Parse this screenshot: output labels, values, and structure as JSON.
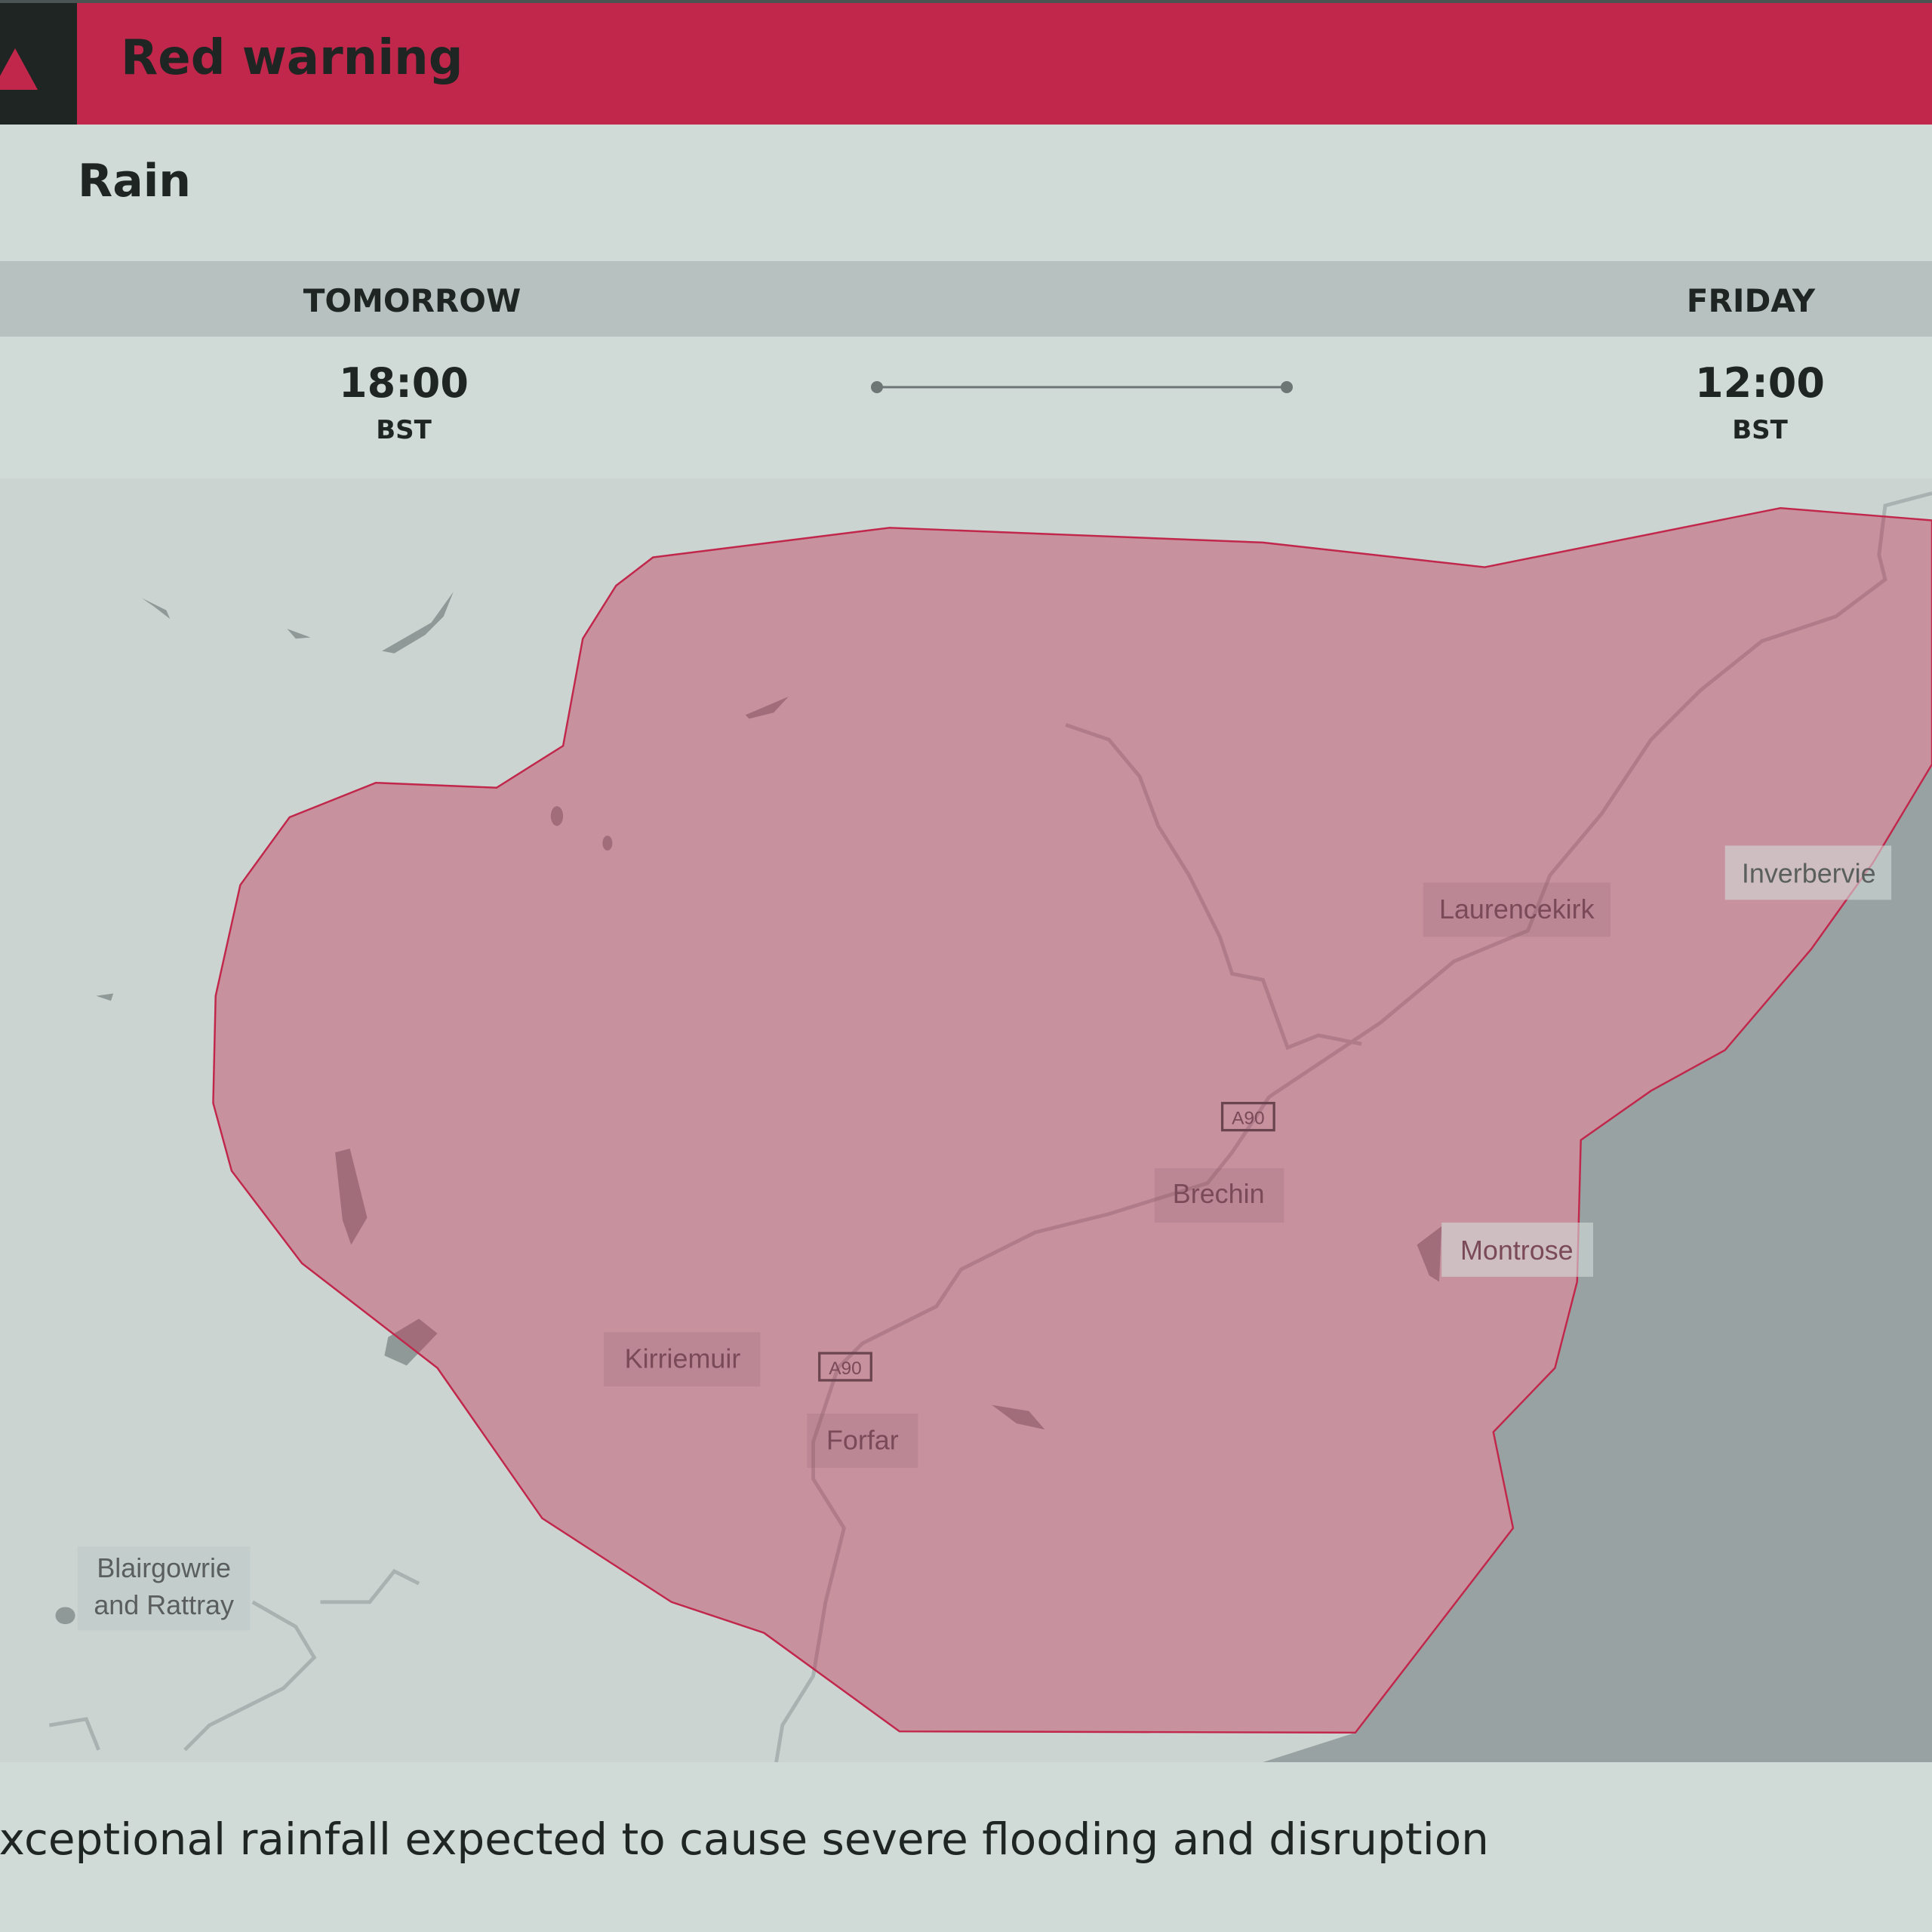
{
  "header": {
    "title": "Red warning",
    "icon": "warning-triangle-icon"
  },
  "warning_type": "Rain",
  "period": {
    "start": {
      "day": "TOMORROW",
      "time": "18:00",
      "tz": "BST"
    },
    "end": {
      "day": "FRIDAY",
      "time": "12:00",
      "tz": "BST"
    }
  },
  "map": {
    "places": [
      "Laurencekirk",
      "Inverbervie",
      "Brechin",
      "Montrose",
      "Kirriemuir",
      "Forfar",
      "Blairgowrie",
      "and Rattray"
    ],
    "roads": [
      "A90",
      "A90"
    ],
    "warning_area_color": "#c1264b"
  },
  "description": "Exceptional rainfall expected to cause severe flooding and disruption",
  "colors": {
    "red": "#c1264b",
    "dark": "#1e2523",
    "sea": "#99a2a2",
    "land": "#cbd4d1"
  }
}
